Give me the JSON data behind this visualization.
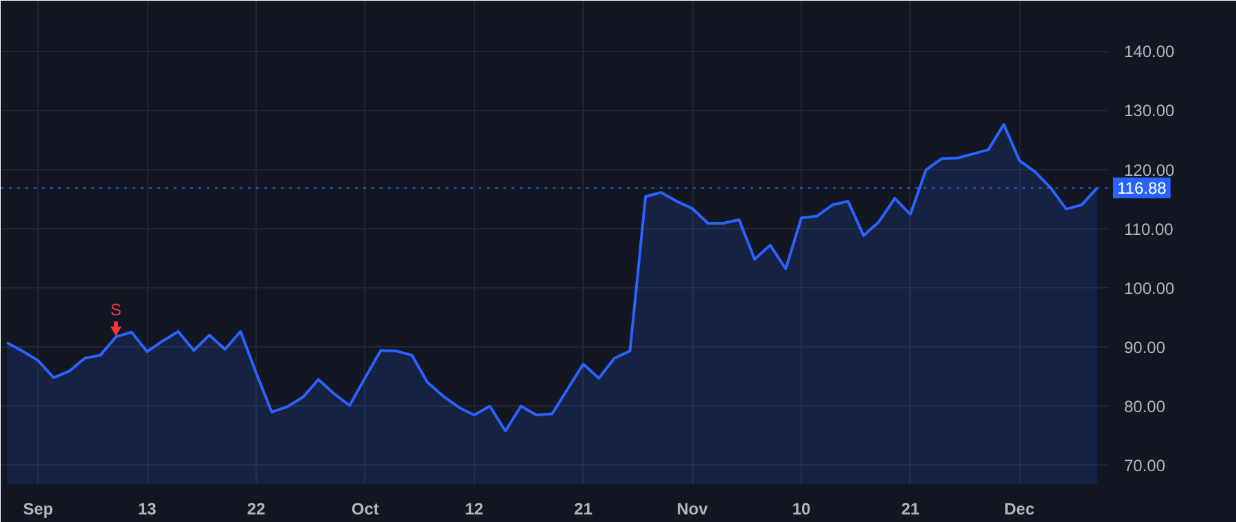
{
  "chart_data": {
    "type": "area",
    "categories": [
      null,
      null,
      "Sep",
      null,
      null,
      null,
      null,
      null,
      null,
      "13",
      null,
      null,
      null,
      null,
      null,
      null,
      "22",
      null,
      null,
      null,
      null,
      null,
      null,
      "Oct",
      null,
      null,
      null,
      null,
      null,
      null,
      "12",
      null,
      null,
      null,
      null,
      null,
      null,
      "21",
      null,
      null,
      null,
      null,
      null,
      null,
      "Nov",
      null,
      null,
      null,
      null,
      null,
      null,
      "10",
      null,
      null,
      null,
      null,
      null,
      null,
      "21",
      null,
      null,
      null,
      null,
      null,
      null,
      "Dec",
      null,
      null,
      null,
      null,
      null
    ],
    "series": [
      {
        "color": "#2962ff",
        "values": [
          90.7,
          89.3,
          87.7,
          84.8,
          85.9,
          88.1,
          88.6,
          91.7,
          92.5,
          89.2,
          91.0,
          92.6,
          89.4,
          92.0,
          89.6,
          92.6,
          85.6,
          79.0,
          79.9,
          81.5,
          84.5,
          82.1,
          80.1,
          84.8,
          89.4,
          89.3,
          88.6,
          84.0,
          81.7,
          79.8,
          78.5,
          80.0,
          75.8,
          80.0,
          78.5,
          78.7,
          82.9,
          87.1,
          84.7,
          88.1,
          89.3,
          115.4,
          116.1,
          114.6,
          113.4,
          110.9,
          110.9,
          111.5,
          104.8,
          107.2,
          103.2,
          111.8,
          112.1,
          114.0,
          114.6,
          108.8,
          111.2,
          115.1,
          112.4,
          119.9,
          121.8,
          121.9,
          122.6,
          123.3,
          127.6,
          121.5,
          119.6,
          116.9,
          113.3,
          114.0,
          116.88
        ]
      }
    ],
    "ylim": [
      66.8,
      148.5
    ],
    "yticks": [
      {
        "value": 70,
        "label": "70.00"
      },
      {
        "value": 80,
        "label": "80.00"
      },
      {
        "value": 90,
        "label": "90.00"
      },
      {
        "value": 100,
        "label": "100.00"
      },
      {
        "value": 110,
        "label": "110.00"
      },
      {
        "value": 120,
        "label": "120.00"
      },
      {
        "value": 130,
        "label": "130.00"
      },
      {
        "value": 140,
        "label": "140.00"
      }
    ],
    "ref_lines": [
      {
        "axis": "y",
        "value": 116.88,
        "label": "116.88",
        "color": "#2962ff",
        "line_style": "dotted"
      }
    ],
    "annotations": [
      {
        "text": "S",
        "y": 91.7
      }
    ],
    "grid": true
  }
}
